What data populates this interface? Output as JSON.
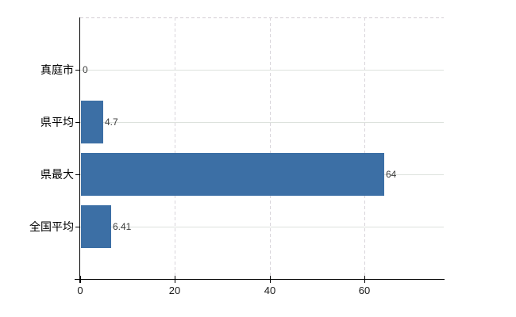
{
  "chart_data": {
    "type": "bar",
    "orientation": "horizontal",
    "title": "",
    "xlabel": "",
    "ylabel": "",
    "categories": [
      "真庭市",
      "県平均",
      "県最大",
      "全国平均"
    ],
    "values": [
      0,
      4.7,
      64,
      6.41
    ],
    "data_labels": [
      "0",
      "4.7",
      "64",
      "6.41"
    ],
    "x_ticks": [
      0,
      20,
      40,
      60
    ],
    "x_tick_labels": [
      "0",
      "20",
      "40",
      "60"
    ],
    "xlim": [
      0,
      76.7
    ],
    "legend": "none",
    "grid": {
      "horizontal_per_category": "solid",
      "vertical_at_ticks": "dashed",
      "top_border": "dashed"
    },
    "colors": {
      "bar": "#3c6fa5",
      "axis": "#000000",
      "h_grid": "#dde2dd",
      "v_grid": "#d8d4da",
      "top_border": "#d2cdd2",
      "category_label": "#000000",
      "tick_label": "#1a1a1a",
      "data_label": "#3c3c3c",
      "background": "#ffffff"
    }
  }
}
